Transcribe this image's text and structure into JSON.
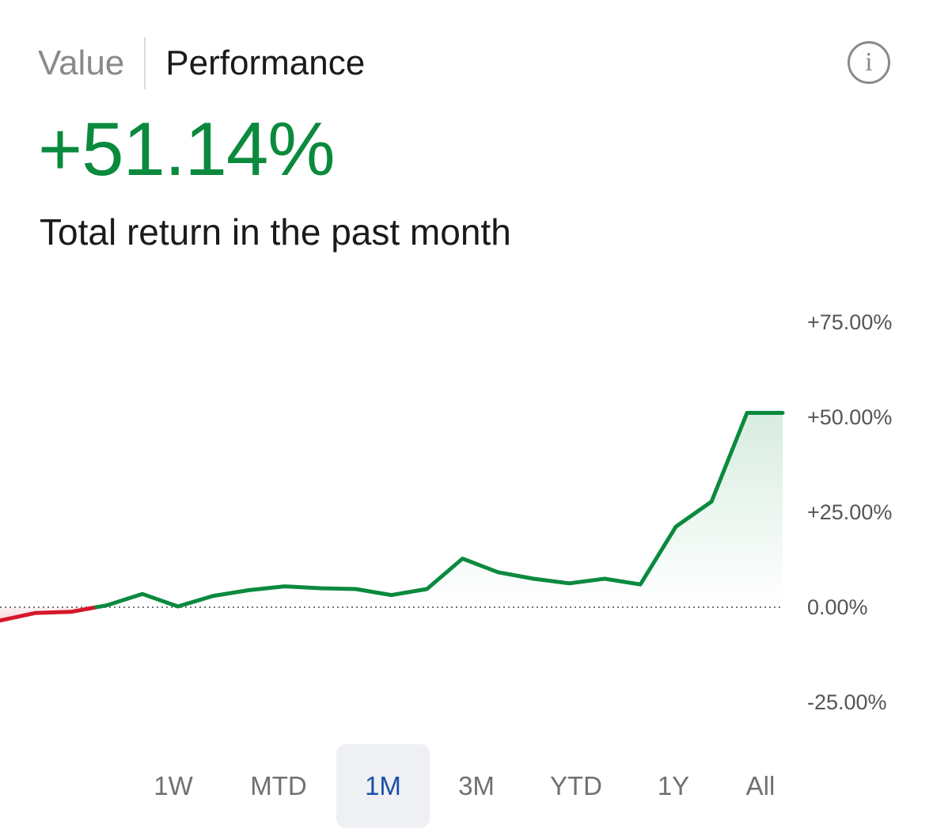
{
  "tabs": [
    {
      "label": "Value",
      "active": false
    },
    {
      "label": "Performance",
      "active": true
    }
  ],
  "info_icon": "info-icon",
  "info_glyph": "i",
  "headline": {
    "value": "+51.14%",
    "caption": "Total return in the past month"
  },
  "colors": {
    "positive": "#0b8a3e",
    "negative": "#d6182b",
    "active_range": "#1a4fa8",
    "zero_line": "#777777"
  },
  "chart_data": {
    "type": "line",
    "title": "",
    "xlabel": "",
    "ylabel": "",
    "y_tick_labels": [
      "+75.00%",
      "+50.00%",
      "+25.00%",
      "0.00%",
      "-25.00%"
    ],
    "y_ticks": [
      75,
      50,
      25,
      0,
      -25
    ],
    "ylim": [
      -25,
      75
    ],
    "zero_line": "dotted",
    "grid": false,
    "legend": "none",
    "series": [
      {
        "values": [
          -3.5,
          -1.5,
          -1.2,
          0.5,
          3.5,
          0.2,
          3.0,
          4.5,
          5.5,
          5.0,
          4.8,
          3.2,
          4.8,
          12.8,
          9.2,
          7.5,
          6.3,
          7.5,
          6.0,
          21.2,
          27.8,
          51.14,
          51.14
        ]
      }
    ]
  },
  "ranges": [
    {
      "label": "1W",
      "active": false
    },
    {
      "label": "MTD",
      "active": false
    },
    {
      "label": "1M",
      "active": true
    },
    {
      "label": "3M",
      "active": false
    },
    {
      "label": "YTD",
      "active": false
    },
    {
      "label": "1Y",
      "active": false
    },
    {
      "label": "All",
      "active": false
    }
  ]
}
